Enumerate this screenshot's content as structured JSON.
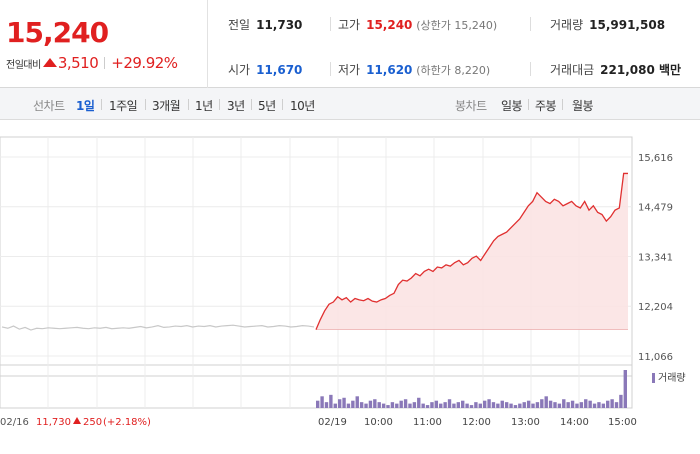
{
  "price": {
    "current": "15,240",
    "diff_label": "전일대비",
    "diff_value": "3,510",
    "diff_rate": "+29.92%"
  },
  "stats": {
    "prev_close_label": "전일",
    "prev_close": "11,730",
    "high_label": "고가",
    "high": "15,240",
    "upper_limit": "(상한가 15,240)",
    "volume_label": "거래량",
    "volume": "15,991,508",
    "open_label": "시가",
    "open": "11,670",
    "low_label": "저가",
    "low": "11,620",
    "lower_limit": "(하한가 8,220)",
    "amount_label": "거래대금",
    "amount": "221,080 백만"
  },
  "tabs": {
    "line_label": "선차트",
    "line_items": [
      "1일",
      "1주일",
      "3개월",
      "1년",
      "3년",
      "5년",
      "10년"
    ],
    "candle_label": "봉차트",
    "candle_items": [
      "일봉",
      "주봉",
      "월봉"
    ]
  },
  "chart_data": {
    "type": "line",
    "y_ticks": [
      "15,616",
      "14,479",
      "13,341",
      "12,204",
      "11,066"
    ],
    "ylim": [
      11066,
      15616
    ],
    "x_labels": [
      "02/16",
      "02/19",
      "10:00",
      "11:00",
      "12:00",
      "13:00",
      "14:00",
      "15:00"
    ],
    "prev_day_summary": {
      "date": "02/16",
      "price": "11,730",
      "change": "250",
      "rate": "(+2.18%)"
    },
    "volume_legend": "거래량",
    "colors": {
      "prev": "#c8c8c8",
      "today": "#e03030",
      "fill": "#fbe3e3",
      "volume": "#8a78b8"
    },
    "prev_series": [
      11730,
      11700,
      11750,
      11680,
      11720,
      11660,
      11700,
      11690,
      11710,
      11700,
      11690,
      11700,
      11710,
      11720,
      11700,
      11690,
      11710,
      11700,
      11720,
      11690,
      11700,
      11710,
      11700,
      11720,
      11740,
      11710,
      11730,
      11760,
      11720,
      11730,
      11750,
      11740,
      11760,
      11730,
      11750,
      11740,
      11760,
      11730,
      11750,
      11760,
      11770,
      11750,
      11730,
      11740,
      11750,
      11760,
      11730,
      11740,
      11760,
      11750,
      11730,
      11740,
      11760,
      11750,
      11730
    ],
    "today_series": [
      11670,
      11900,
      12100,
      12250,
      12300,
      12420,
      12350,
      12400,
      12300,
      12380,
      12350,
      12330,
      12380,
      12320,
      12300,
      12350,
      12380,
      12450,
      12500,
      12700,
      12800,
      12780,
      12850,
      12950,
      12900,
      13000,
      13050,
      13000,
      13100,
      13080,
      13150,
      13120,
      13200,
      13250,
      13150,
      13200,
      13300,
      13350,
      13250,
      13400,
      13550,
      13700,
      13800,
      13850,
      13900,
      14000,
      14100,
      14200,
      14350,
      14500,
      14600,
      14800,
      14700,
      14600,
      14550,
      14650,
      14600,
      14500,
      14550,
      14600,
      14500,
      14450,
      14600,
      14400,
      14500,
      14350,
      14300,
      14150,
      14250,
      14400,
      14450,
      15240,
      15240
    ],
    "volume_series": [
      5,
      8,
      4,
      9,
      3,
      6,
      7,
      3,
      5,
      8,
      4,
      3,
      5,
      6,
      4,
      3,
      2,
      4,
      3,
      5,
      6,
      3,
      4,
      7,
      3,
      2,
      4,
      5,
      3,
      4,
      6,
      3,
      4,
      5,
      3,
      2,
      4,
      3,
      5,
      6,
      4,
      3,
      5,
      4,
      3,
      2,
      3,
      4,
      5,
      3,
      4,
      6,
      8,
      5,
      4,
      3,
      6,
      4,
      5,
      3,
      4,
      6,
      5,
      3,
      4,
      3,
      5,
      6,
      4,
      9,
      26
    ]
  }
}
